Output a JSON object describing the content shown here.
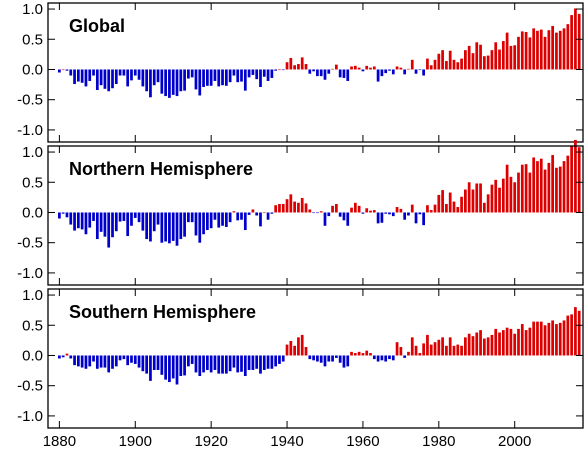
{
  "chart_data": [
    {
      "type": "bar",
      "title": "Global",
      "xlabel": "",
      "ylabel": "",
      "xlim": [
        1877,
        2018
      ],
      "ylim": [
        -1.2,
        1.1
      ],
      "yticks": [
        "1.0",
        "0.5",
        "0.0",
        "-0.5",
        "-1.0"
      ],
      "xticks": [
        "1880",
        "1900",
        "1920",
        "1940",
        "1960",
        "1980",
        "2000"
      ],
      "colors": {
        "negative": "#0000cc",
        "positive": "#dd0000"
      },
      "x_start": 1880,
      "values": [
        -0.05,
        0.0,
        -0.02,
        -0.1,
        -0.24,
        -0.2,
        -0.22,
        -0.28,
        -0.19,
        -0.1,
        -0.34,
        -0.26,
        -0.32,
        -0.36,
        -0.31,
        -0.24,
        -0.1,
        -0.1,
        -0.28,
        -0.18,
        -0.1,
        -0.17,
        -0.28,
        -0.36,
        -0.46,
        -0.26,
        -0.21,
        -0.4,
        -0.44,
        -0.47,
        -0.42,
        -0.44,
        -0.36,
        -0.35,
        -0.15,
        -0.13,
        -0.33,
        -0.43,
        -0.29,
        -0.27,
        -0.27,
        -0.19,
        -0.28,
        -0.26,
        -0.27,
        -0.21,
        -0.1,
        -0.21,
        -0.2,
        -0.35,
        -0.13,
        -0.09,
        -0.16,
        -0.29,
        -0.12,
        -0.19,
        -0.14,
        -0.02,
        -0.0,
        -0.01,
        0.12,
        0.19,
        0.07,
        0.09,
        0.2,
        0.09,
        -0.07,
        -0.03,
        -0.11,
        -0.11,
        -0.17,
        -0.07,
        0.01,
        0.08,
        -0.13,
        -0.14,
        -0.19,
        0.05,
        0.06,
        0.03,
        -0.03,
        0.06,
        0.03,
        0.05,
        -0.2,
        -0.11,
        -0.06,
        -0.02,
        -0.08,
        0.05,
        0.03,
        -0.08,
        0.01,
        0.16,
        -0.07,
        -0.01,
        -0.1,
        0.18,
        0.07,
        0.16,
        0.26,
        0.32,
        0.14,
        0.31,
        0.16,
        0.12,
        0.18,
        0.32,
        0.39,
        0.27,
        0.45,
        0.41,
        0.22,
        0.23,
        0.32,
        0.45,
        0.33,
        0.47,
        0.61,
        0.39,
        0.4,
        0.54,
        0.63,
        0.62,
        0.53,
        0.68,
        0.64,
        0.66,
        0.54,
        0.65,
        0.72,
        0.61,
        0.64,
        0.68,
        0.75,
        0.9,
        1.01,
        0.92
      ],
      "series": [
        {
          "values": "values"
        }
      ]
    },
    {
      "type": "bar",
      "title": "Northern Hemisphere",
      "xlabel": "",
      "ylabel": "",
      "xlim": [
        1877,
        2018
      ],
      "ylim": [
        -1.2,
        1.1
      ],
      "yticks": [
        "1.0",
        "0.5",
        "0.0",
        "-0.5",
        "-1.0"
      ],
      "xticks": [
        "1880",
        "1900",
        "1920",
        "1940",
        "1960",
        "1980",
        "2000"
      ],
      "colors": {
        "negative": "#0000cc",
        "positive": "#dd0000"
      },
      "x_start": 1880,
      "values": [
        -0.1,
        -0.02,
        -0.08,
        -0.2,
        -0.3,
        -0.26,
        -0.28,
        -0.36,
        -0.25,
        -0.14,
        -0.44,
        -0.32,
        -0.4,
        -0.58,
        -0.41,
        -0.31,
        -0.15,
        -0.14,
        -0.39,
        -0.22,
        -0.09,
        -0.16,
        -0.3,
        -0.44,
        -0.48,
        -0.31,
        -0.2,
        -0.5,
        -0.48,
        -0.51,
        -0.47,
        -0.55,
        -0.44,
        -0.4,
        -0.16,
        -0.16,
        -0.38,
        -0.5,
        -0.36,
        -0.29,
        -0.26,
        -0.12,
        -0.25,
        -0.22,
        -0.24,
        -0.16,
        0.02,
        -0.13,
        -0.12,
        -0.29,
        -0.04,
        0.05,
        -0.05,
        -0.23,
        0.0,
        -0.12,
        -0.02,
        0.12,
        0.14,
        0.14,
        0.22,
        0.3,
        0.18,
        0.16,
        0.24,
        0.15,
        0.05,
        -0.01,
        -0.01,
        0.02,
        -0.22,
        -0.06,
        0.11,
        0.14,
        -0.07,
        -0.13,
        -0.22,
        0.08,
        0.16,
        0.11,
        -0.02,
        0.07,
        0.03,
        0.04,
        -0.18,
        -0.17,
        -0.02,
        -0.03,
        -0.06,
        0.09,
        0.06,
        -0.12,
        -0.05,
        0.13,
        -0.18,
        -0.03,
        -0.21,
        0.12,
        0.04,
        0.13,
        0.29,
        0.37,
        0.14,
        0.33,
        0.18,
        0.09,
        0.26,
        0.38,
        0.5,
        0.38,
        0.48,
        0.48,
        0.16,
        0.3,
        0.46,
        0.54,
        0.41,
        0.56,
        0.79,
        0.59,
        0.5,
        0.66,
        0.79,
        0.8,
        0.66,
        0.91,
        0.85,
        0.89,
        0.71,
        0.82,
        0.95,
        0.74,
        0.76,
        0.85,
        0.94,
        1.1,
        1.2,
        1.08
      ],
      "series": [
        {
          "values": "values"
        }
      ]
    },
    {
      "type": "bar",
      "title": "Southern Hemisphere",
      "xlabel": "",
      "ylabel": "",
      "xlim": [
        1877,
        2018
      ],
      "ylim": [
        -1.2,
        1.1
      ],
      "yticks": [
        "1.0",
        "0.5",
        "0.0",
        "-0.5",
        "-1.0"
      ],
      "xticks": [
        "1880",
        "1900",
        "1920",
        "1940",
        "1960",
        "1980",
        "2000"
      ],
      "colors": {
        "negative": "#0000cc",
        "positive": "#dd0000"
      },
      "x_start": 1880,
      "values": [
        -0.05,
        -0.03,
        0.03,
        -0.05,
        -0.16,
        -0.18,
        -0.2,
        -0.22,
        -0.18,
        -0.1,
        -0.22,
        -0.2,
        -0.2,
        -0.28,
        -0.22,
        -0.18,
        -0.08,
        -0.06,
        -0.16,
        -0.12,
        -0.14,
        -0.2,
        -0.26,
        -0.3,
        -0.42,
        -0.24,
        -0.24,
        -0.32,
        -0.4,
        -0.44,
        -0.38,
        -0.48,
        -0.34,
        -0.33,
        -0.18,
        -0.14,
        -0.28,
        -0.34,
        -0.28,
        -0.24,
        -0.28,
        -0.24,
        -0.3,
        -0.3,
        -0.3,
        -0.26,
        -0.2,
        -0.28,
        -0.27,
        -0.34,
        -0.24,
        -0.24,
        -0.22,
        -0.3,
        -0.24,
        -0.22,
        -0.22,
        -0.18,
        -0.14,
        -0.1,
        0.18,
        0.24,
        0.16,
        0.3,
        0.34,
        0.14,
        -0.06,
        -0.08,
        -0.1,
        -0.12,
        -0.18,
        -0.1,
        -0.1,
        -0.04,
        -0.12,
        -0.2,
        -0.18,
        0.06,
        0.04,
        0.06,
        0.04,
        0.08,
        0.04,
        -0.06,
        -0.1,
        -0.08,
        -0.1,
        -0.06,
        -0.08,
        0.22,
        0.14,
        -0.04,
        0.06,
        0.3,
        0.16,
        0.04,
        0.2,
        0.34,
        0.18,
        0.22,
        0.26,
        0.3,
        0.16,
        0.3,
        0.16,
        0.18,
        0.16,
        0.3,
        0.36,
        0.32,
        0.38,
        0.42,
        0.28,
        0.3,
        0.34,
        0.44,
        0.38,
        0.42,
        0.46,
        0.44,
        0.36,
        0.44,
        0.52,
        0.42,
        0.46,
        0.56,
        0.56,
        0.56,
        0.5,
        0.54,
        0.58,
        0.52,
        0.54,
        0.58,
        0.66,
        0.68,
        0.8,
        0.74
      ],
      "series": [
        {
          "values": "values"
        }
      ]
    }
  ]
}
